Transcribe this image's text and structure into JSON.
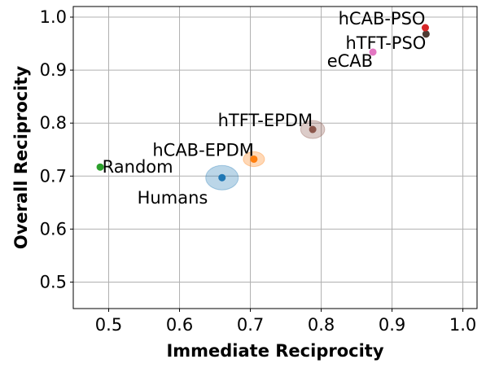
{
  "chart_data": {
    "type": "scatter",
    "title": "",
    "xlabel": "Immediate Reciprocity",
    "ylabel": "Overall Reciprocity",
    "xlim": [
      0.45,
      1.02
    ],
    "ylim": [
      0.45,
      1.02
    ],
    "xticks": [
      "0.5",
      "0.6",
      "0.7",
      "0.8",
      "0.9",
      "1.0"
    ],
    "yticks": [
      "0.5",
      "0.6",
      "0.7",
      "0.8",
      "0.9",
      "1.0"
    ],
    "grid": true,
    "points": [
      {
        "name": "Random",
        "x": 0.488,
        "y": 0.717,
        "color": "#2ca02c",
        "label_anchor": "start",
        "label_dx": 0.003,
        "label_dy": 0.0,
        "ellipse": null
      },
      {
        "name": "Humans",
        "x": 0.66,
        "y": 0.697,
        "color": "#1f77b4",
        "label_anchor": "end",
        "label_dx": -0.02,
        "label_dy": -0.038,
        "ellipse": {
          "rx": 0.023,
          "ry": 0.023,
          "color": "#1f77b4"
        }
      },
      {
        "name": "hCAB-EPDM",
        "x": 0.705,
        "y": 0.732,
        "color": "#ff7f0e",
        "label_anchor": "end",
        "label_dx": 0.0,
        "label_dy": 0.017,
        "ellipse": {
          "rx": 0.015,
          "ry": 0.014,
          "color": "#ff7f0e"
        }
      },
      {
        "name": "hTFT-EPDM",
        "x": 0.788,
        "y": 0.788,
        "color": "#8c564b",
        "label_anchor": "end",
        "label_dx": 0.0,
        "label_dy": 0.017,
        "ellipse": {
          "rx": 0.017,
          "ry": 0.017,
          "color": "#8c564b"
        }
      },
      {
        "name": "eCAB",
        "x": 0.873,
        "y": 0.934,
        "color": "#e377c2",
        "label_anchor": "end",
        "label_dx": 0.0,
        "label_dy": -0.017,
        "ellipse": null
      },
      {
        "name": "hTFT-PSO",
        "x": 0.948,
        "y": 0.968,
        "color": "#4d3b33",
        "label_anchor": "end",
        "label_dx": 0.0,
        "label_dy": -0.017,
        "ellipse": null
      },
      {
        "name": "hCAB-PSO",
        "x": 0.947,
        "y": 0.98,
        "color": "#d62728",
        "label_anchor": "end",
        "label_dx": 0.0,
        "label_dy": 0.017,
        "ellipse": null
      }
    ]
  }
}
